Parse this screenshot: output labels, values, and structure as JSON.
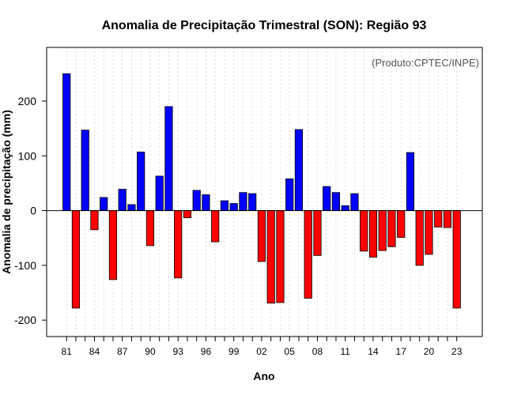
{
  "chart_data": {
    "type": "bar",
    "title": "Anomalia de Precipitação Trimestral (SON): Região 93",
    "xlabel": "Ano",
    "ylabel": "Anomalia de precipitação (mm)",
    "source_note": "(Produto:CPTEC/INPE)",
    "ylim": [
      -230,
      298
    ],
    "yticks": [
      -200,
      -100,
      0,
      100,
      200
    ],
    "xtick_labels": [
      "81",
      "84",
      "87",
      "90",
      "93",
      "96",
      "99",
      "02",
      "05",
      "08",
      "11",
      "14",
      "17",
      "20",
      "23"
    ],
    "grid": true,
    "colors": {
      "positive": "#0000ff",
      "negative": "#ff0000",
      "grid": "#d3d3d3"
    },
    "years": [
      1981,
      1982,
      1983,
      1984,
      1985,
      1986,
      1987,
      1988,
      1989,
      1990,
      1991,
      1992,
      1993,
      1994,
      1995,
      1996,
      1997,
      1998,
      1999,
      2000,
      2001,
      2002,
      2003,
      2004,
      2005,
      2006,
      2007,
      2008,
      2009,
      2010,
      2011,
      2012,
      2013,
      2014,
      2015,
      2016,
      2017,
      2018,
      2019,
      2020,
      2021,
      2022,
      2023
    ],
    "values": [
      250,
      -178,
      147,
      -35,
      24,
      -126,
      39,
      11,
      107,
      -64,
      63,
      190,
      -123,
      -13,
      37,
      29,
      -57,
      18,
      13,
      33,
      31,
      -93,
      -169,
      -168,
      58,
      148,
      -160,
      -82,
      44,
      33,
      9,
      31,
      -74,
      -85,
      -73,
      -66,
      -49,
      106,
      -100,
      -80,
      -30,
      -31,
      -178
    ]
  }
}
